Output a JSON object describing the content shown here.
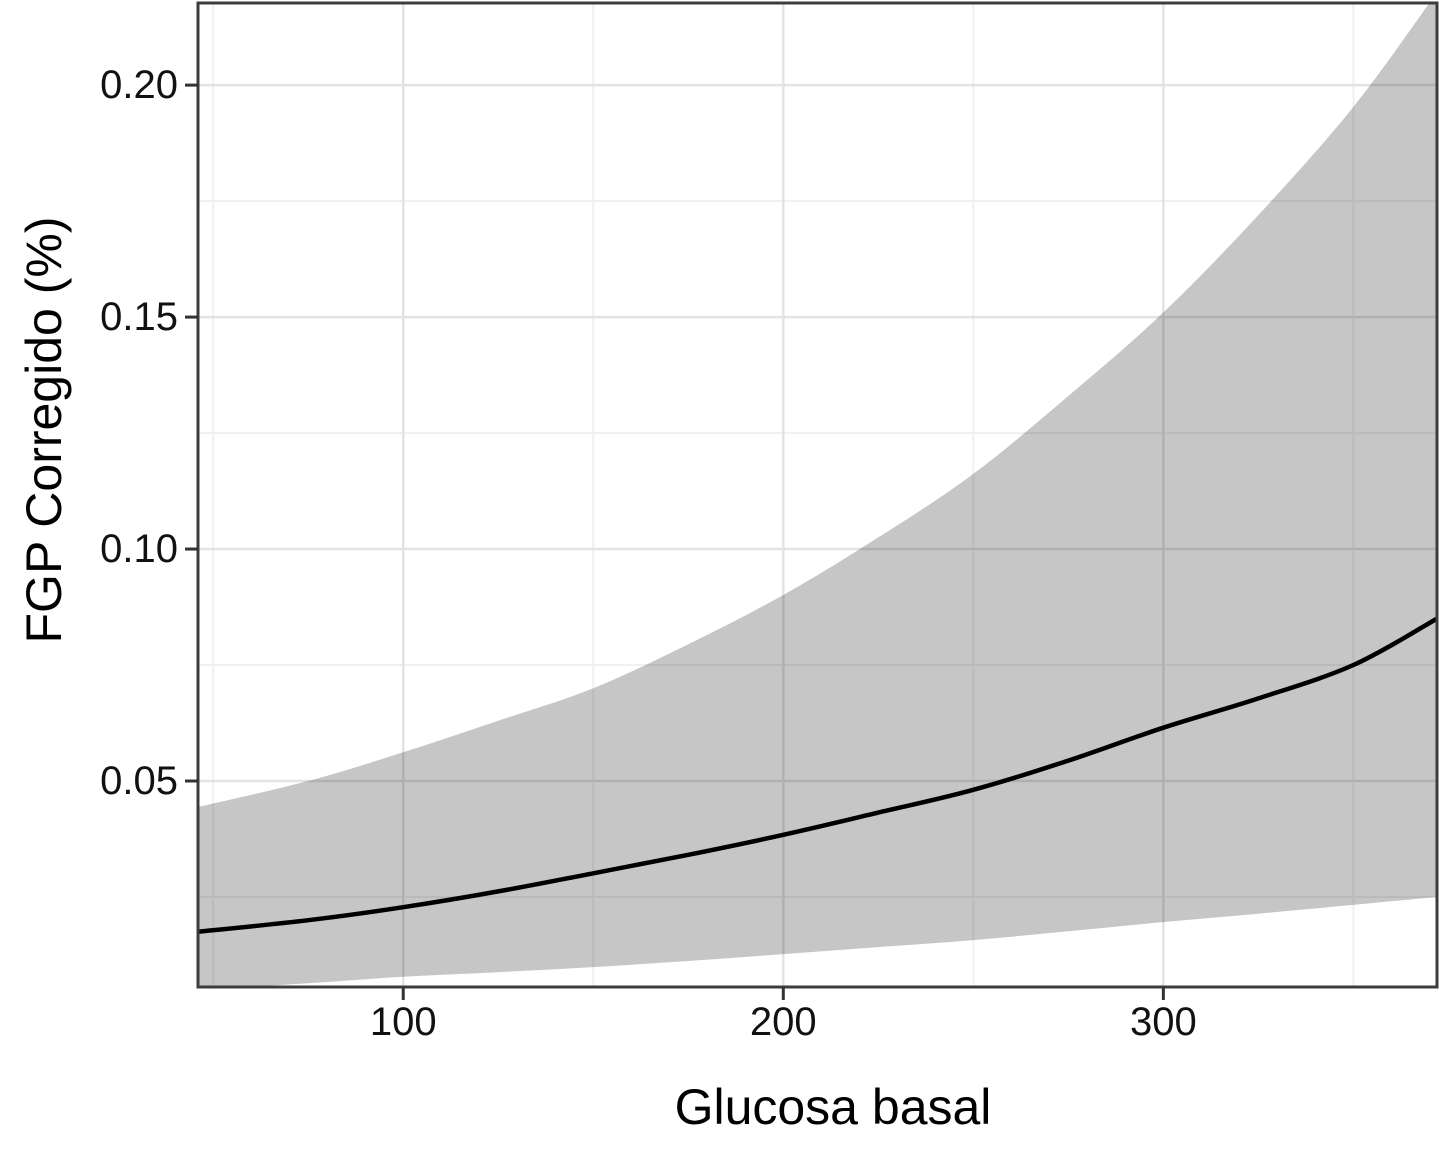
{
  "chart_data": {
    "type": "line",
    "title": "",
    "xlabel": "Glucosa basal",
    "ylabel": "FGP Corregido (%)",
    "legend": "none",
    "grid": "major+minor",
    "xlim": [
      46,
      372
    ],
    "ylim": [
      0.0056,
      0.2177
    ],
    "x": [
      46,
      75,
      100,
      125,
      150,
      175,
      200,
      225,
      250,
      275,
      300,
      325,
      350,
      372
    ],
    "series": [
      {
        "name": "fit",
        "values": [
          0.0175,
          0.02,
          0.0228,
          0.0262,
          0.0301,
          0.0341,
          0.0384,
          0.0432,
          0.0481,
          0.0544,
          0.0615,
          0.0678,
          0.075,
          0.085
        ]
      },
      {
        "name": "ci_lower",
        "values": [
          0.005,
          0.0064,
          0.0078,
          0.0088,
          0.0099,
          0.0112,
          0.0127,
          0.0142,
          0.0157,
          0.0176,
          0.0196,
          0.0214,
          0.0233,
          0.025
        ]
      },
      {
        "name": "ci_upper",
        "values": [
          0.0444,
          0.05,
          0.0562,
          0.063,
          0.07,
          0.0795,
          0.0901,
          0.1025,
          0.1162,
          0.133,
          0.151,
          0.172,
          0.1953,
          0.22
        ]
      }
    ],
    "x_major_ticks": [
      100,
      200,
      300
    ],
    "x_minor_ticks": [
      50,
      150,
      250,
      350
    ],
    "y_major_ticks": [
      0.05,
      0.1,
      0.15,
      0.2
    ],
    "y_minor_ticks": [
      0.025,
      0.075,
      0.125,
      0.175
    ],
    "x_tick_labels": [
      "100",
      "200",
      "300"
    ],
    "y_tick_labels": [
      "0.05",
      "0.10",
      "0.15",
      "0.20"
    ],
    "colors": {
      "line": "#000000",
      "ribbon": "rgba(0,0,0,0.225)",
      "grid_major": "#e3e3e3",
      "grid_minor": "#f0f0f0",
      "panel_border": "#3c3c3c",
      "tick_mark": "#333333",
      "tick_text": "#111111",
      "title_text": "#000000",
      "background": "#ffffff"
    }
  }
}
